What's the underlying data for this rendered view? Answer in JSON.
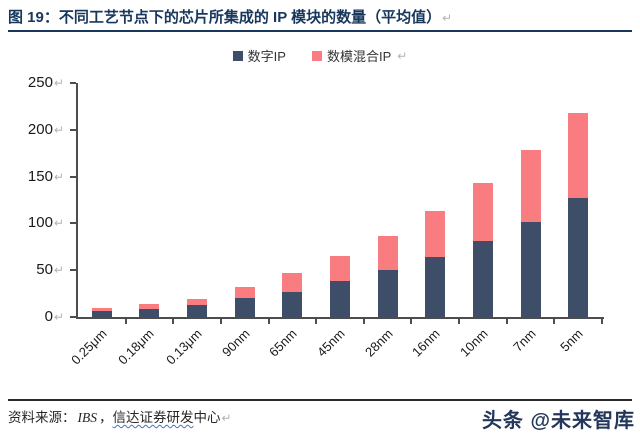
{
  "marks": {
    "pilcrow": "↵"
  },
  "header": {
    "title": "图 19：不同工艺节点下的芯片所集成的 IP 模块的数量（平均值）"
  },
  "chart_data": {
    "type": "bar",
    "stacked": true,
    "title": "图 19：不同工艺节点下的芯片所集成的 IP 模块的数量（平均值）",
    "categories": [
      "0.25μm",
      "0.18μm",
      "0.13μm",
      "90nm",
      "65nm",
      "45nm",
      "28nm",
      "16nm",
      "10nm",
      "7nm",
      "5nm"
    ],
    "series": [
      {
        "name": "数字IP",
        "color": "#3F4E68",
        "values": [
          6,
          9,
          13,
          20,
          27,
          38,
          50,
          64,
          81,
          102,
          127
        ]
      },
      {
        "name": "数模混合IP",
        "color": "#F97C80",
        "values": [
          4,
          5,
          6,
          12,
          20,
          27,
          37,
          49,
          62,
          76,
          91
        ]
      }
    ],
    "totals": [
      10,
      14,
      19,
      32,
      47,
      65,
      87,
      113,
      143,
      178,
      218
    ],
    "ylim": [
      0,
      250
    ],
    "yticks": [
      0,
      50,
      100,
      150,
      200,
      250
    ],
    "xlabel": "",
    "ylabel": "",
    "grid": false,
    "legend_position": "top",
    "x_tick_rotation": 45
  },
  "footer": {
    "source_label": "资料来源：",
    "source_ibs": "IBS",
    "source_sep": "，",
    "source_org_underlined": "信达证券研发",
    "source_org_rest": "中心"
  },
  "watermark": {
    "text": "头条 @未来智库"
  },
  "colors": {
    "title": "#17375D",
    "axis": "#4D4D4D",
    "digital_bar": "#3F4E68",
    "mixed_bar": "#F97C80",
    "wavy_underline": "#4472C4",
    "watermark": "#24375A",
    "pilcrow": "#B3B3B3"
  }
}
